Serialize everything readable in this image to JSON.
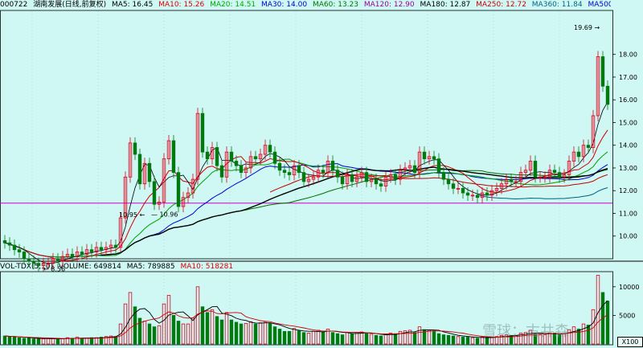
{
  "header": {
    "code": "000722",
    "name": "湖南发展(日线,前复权)",
    "ma": [
      "MA5: 16.45",
      "MA10: 15.26",
      "MA20: 14.51",
      "MA30: 14.00",
      "MA60: 13.23",
      "MA120: 12.90",
      "MA180: 12.87",
      "MA250: 12.72",
      "MA360: 11.84",
      "MA500:"
    ]
  },
  "volume": {
    "header": [
      "VOL-TDX(5,10)",
      "VOLUME: 649814",
      "MA5: 789885",
      "MA10: 518281"
    ],
    "unit": "X100",
    "ticks": [
      "5000",
      "10000"
    ]
  },
  "watermark": "雪球：古井森",
  "colors": {
    "up": "#e0001a",
    "down": "#007a10",
    "ma5": "#000000",
    "ma10": "#d00000",
    "ma20": "#00a000",
    "ma30": "#0000d0",
    "ma60": "#007000",
    "ma180": "#000000",
    "ma250": "#c00000",
    "ma360": "#006088",
    "refline": "#cc00cc"
  },
  "chart_data": {
    "type": "candlestick",
    "ylim": [
      9.0,
      19.9
    ],
    "yticks": [
      "10.00",
      "11.00",
      "12.00",
      "13.00",
      "14.00",
      "15.00",
      "16.00",
      "17.00",
      "18.00"
    ],
    "reference_level": 11.45,
    "annotations": {
      "low": "8.56",
      "mid_left": "10.95",
      "mid_right": "10.96",
      "high": "19.69"
    },
    "close": [
      9.7,
      9.6,
      9.4,
      9.3,
      9.0,
      8.9,
      8.8,
      8.7,
      8.8,
      8.8,
      9.0,
      8.9,
      9.1,
      9.2,
      9.1,
      9.3,
      9.2,
      9.4,
      9.3,
      9.5,
      9.4,
      9.5,
      9.6,
      9.5,
      10.8,
      12.6,
      14.1,
      13.6,
      12.3,
      13.2,
      12.4,
      11.4,
      11.5,
      13.4,
      14.2,
      12.8,
      11.3,
      11.7,
      11.9,
      12.5,
      15.4,
      13.7,
      13.4,
      13.9,
      13.1,
      12.6,
      13.7,
      13.3,
      13.1,
      12.8,
      13.0,
      13.5,
      13.4,
      13.6,
      14.0,
      13.7,
      13.2,
      12.9,
      12.8,
      12.7,
      13.1,
      12.8,
      12.4,
      12.5,
      12.6,
      12.9,
      12.8,
      13.3,
      12.9,
      12.6,
      12.3,
      12.7,
      12.4,
      12.6,
      12.8,
      12.4,
      12.5,
      12.3,
      12.2,
      12.6,
      12.7,
      12.5,
      12.9,
      13.0,
      13.1,
      12.8,
      13.7,
      13.4,
      13.5,
      13.4,
      12.8,
      12.5,
      12.3,
      12.1,
      12.1,
      11.9,
      11.8,
      11.8,
      11.7,
      11.9,
      11.8,
      12.0,
      12.1,
      12.3,
      12.5,
      12.4,
      12.4,
      12.8,
      12.9,
      13.3,
      12.6,
      12.6,
      12.6,
      12.9,
      12.8,
      12.6,
      12.7,
      13.3,
      13.7,
      13.5,
      14.0,
      13.9,
      15.3,
      17.9,
      16.6,
      15.8
    ],
    "volume": [
      1400,
      1300,
      1200,
      1100,
      1000,
      1100,
      900,
      850,
      900,
      950,
      1000,
      800,
      900,
      1100,
      1000,
      1200,
      900,
      1000,
      1100,
      1100,
      1200,
      1300,
      1400,
      1300,
      3500,
      7000,
      9000,
      6500,
      4500,
      4000,
      3500,
      3000,
      3200,
      7000,
      8500,
      5000,
      4000,
      3500,
      3500,
      4500,
      10000,
      6500,
      5500,
      6000,
      4800,
      4200,
      5500,
      4200,
      3800,
      3500,
      3600,
      3900,
      3500,
      3700,
      3800,
      3600,
      3000,
      2600,
      2200,
      2200,
      2700,
      2300,
      2000,
      1900,
      2200,
      2400,
      2100,
      2600,
      2000,
      1800,
      1600,
      2000,
      1800,
      2000,
      2100,
      1800,
      1700,
      1500,
      1400,
      1700,
      1900,
      1800,
      2200,
      2300,
      2400,
      2000,
      3000,
      2500,
      2400,
      2300,
      1800,
      1600,
      1500,
      1400,
      1300,
      1200,
      1200,
      1100,
      1000,
      1200,
      1100,
      1200,
      1300,
      1500,
      1600,
      1500,
      1500,
      1900,
      2000,
      2400,
      1700,
      1600,
      1600,
      1900,
      1900,
      1700,
      1800,
      2500,
      3000,
      2600,
      3500,
      3300,
      6000,
      12000,
      9000,
      7500
    ]
  }
}
